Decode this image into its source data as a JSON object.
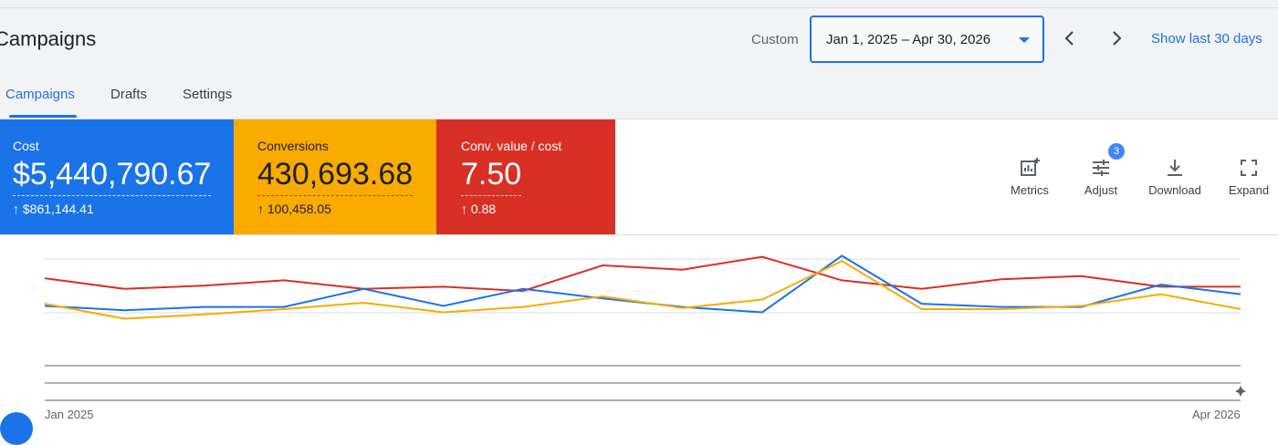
{
  "header": {
    "title": "Campaigns",
    "custom_label": "Custom",
    "date_range": "Jan 1, 2025 – Apr 30, 2026",
    "show_last": "Show last 30 days"
  },
  "tabs": [
    {
      "label": "Campaigns",
      "active": true
    },
    {
      "label": "Drafts",
      "active": false
    },
    {
      "label": "Settings",
      "active": false
    }
  ],
  "scorecards": [
    {
      "label": "Cost",
      "value": "$5,440,790.67",
      "delta": "↑ $861,144.41",
      "color": "#1a73e8"
    },
    {
      "label": "Conversions",
      "value": "430,693.68",
      "delta": "↑ 100,458.05",
      "color": "#f9ab00"
    },
    {
      "label": "Conv. value / cost",
      "value": "7.50",
      "delta": "↑ 0.88",
      "color": "#d93025"
    }
  ],
  "toolbar": {
    "metrics": "Metrics",
    "adjust": "Adjust",
    "adjust_badge": "3",
    "download": "Download",
    "expand": "Expand"
  },
  "chart_data": {
    "type": "line",
    "x_start_label": "Jan 2025",
    "x_end_label": "Apr 2026",
    "points": 16,
    "ylim": [
      0,
      1
    ],
    "grid": true,
    "series": [
      {
        "color": "#d93025",
        "values": [
          0.82,
          0.72,
          0.75,
          0.8,
          0.72,
          0.74,
          0.7,
          0.94,
          0.9,
          1.02,
          0.8,
          0.72,
          0.81,
          0.84,
          0.74,
          0.74
        ]
      },
      {
        "color": "#1a73e8",
        "values": [
          0.56,
          0.52,
          0.55,
          0.55,
          0.72,
          0.56,
          0.72,
          0.63,
          0.55,
          0.5,
          1.03,
          0.58,
          0.55,
          0.55,
          0.76,
          0.67
        ]
      },
      {
        "color": "#f9ab00",
        "values": [
          0.58,
          0.44,
          0.48,
          0.53,
          0.59,
          0.5,
          0.55,
          0.65,
          0.54,
          0.62,
          0.98,
          0.53,
          0.53,
          0.56,
          0.67,
          0.53
        ]
      }
    ]
  }
}
